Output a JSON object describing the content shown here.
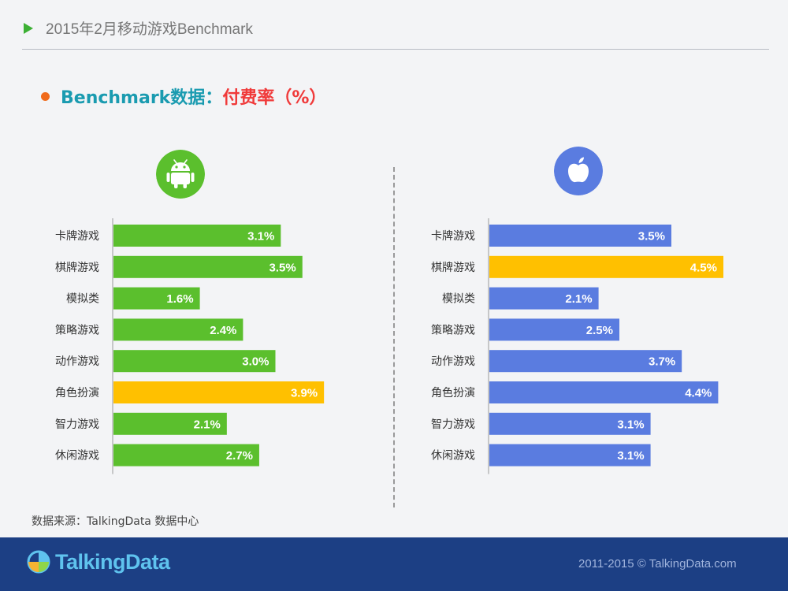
{
  "header": {
    "title": "2015年2月移动游戏Benchmark"
  },
  "subtitle": {
    "prefix": "Benchmark数据：",
    "metric": "付费率（%）"
  },
  "source": "数据来源：TalkingData 数据中心",
  "footer": {
    "brand": "TalkingData",
    "copyright": "2011-2015 © TalkingData.com"
  },
  "colors": {
    "android": "#5bbf2d",
    "ios": "#5a7ce0",
    "highlight": "#ffc000",
    "accent_orange": "#f06a1a",
    "footer_bg": "#1c3f84"
  },
  "chart_data": [
    {
      "type": "bar",
      "orientation": "horizontal",
      "platform_icon": "android-icon",
      "categories": [
        "卡牌游戏",
        "棋牌游戏",
        "模拟类",
        "策略游戏",
        "动作游戏",
        "角色扮演",
        "智力游戏",
        "休闲游戏"
      ],
      "values": [
        3.1,
        3.5,
        1.6,
        2.4,
        3.0,
        3.9,
        2.1,
        2.7
      ],
      "data_labels": [
        "3.1%",
        "3.5%",
        "1.6%",
        "2.4%",
        "3.0%",
        "3.9%",
        "2.1%",
        "2.7%"
      ],
      "highlight_index": 5,
      "bar_color": "#5bbf2d",
      "highlight_color": "#ffc000"
    },
    {
      "type": "bar",
      "orientation": "horizontal",
      "platform_icon": "apple-icon",
      "categories": [
        "卡牌游戏",
        "棋牌游戏",
        "模拟类",
        "策略游戏",
        "动作游戏",
        "角色扮演",
        "智力游戏",
        "休闲游戏"
      ],
      "values": [
        3.5,
        4.5,
        2.1,
        2.5,
        3.7,
        4.4,
        3.1,
        3.1
      ],
      "data_labels": [
        "3.5%",
        "4.5%",
        "2.1%",
        "2.5%",
        "3.7%",
        "4.4%",
        "3.1%",
        "3.1%"
      ],
      "highlight_index": 1,
      "bar_color": "#5a7ce0",
      "highlight_color": "#ffc000"
    }
  ]
}
